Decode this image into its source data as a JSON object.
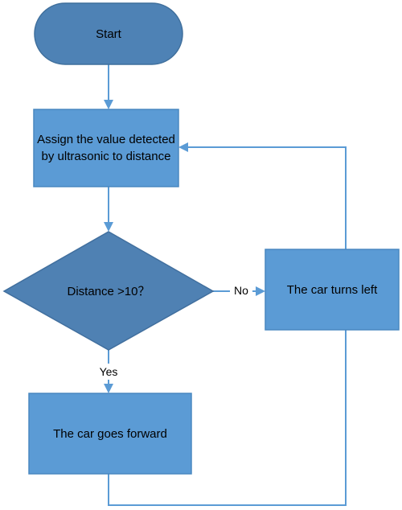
{
  "flowchart": {
    "nodes": {
      "start": "Start",
      "assign": "Assign the value detected by ultrasonic to distance",
      "decision": "Distance >10？",
      "turn_left": "The car turns left",
      "forward": "The car goes forward"
    },
    "edges": {
      "no": "No",
      "yes": "Yes"
    },
    "colors": {
      "terminal_fill": "#4e82b5",
      "terminal_stroke": "#3f6f9c",
      "process_fill": "#5b9bd5",
      "process_stroke": "#4a88c0",
      "decision_fill": "#4f81b3",
      "decision_stroke": "#416f9e",
      "connector": "#5b9bd5"
    }
  }
}
